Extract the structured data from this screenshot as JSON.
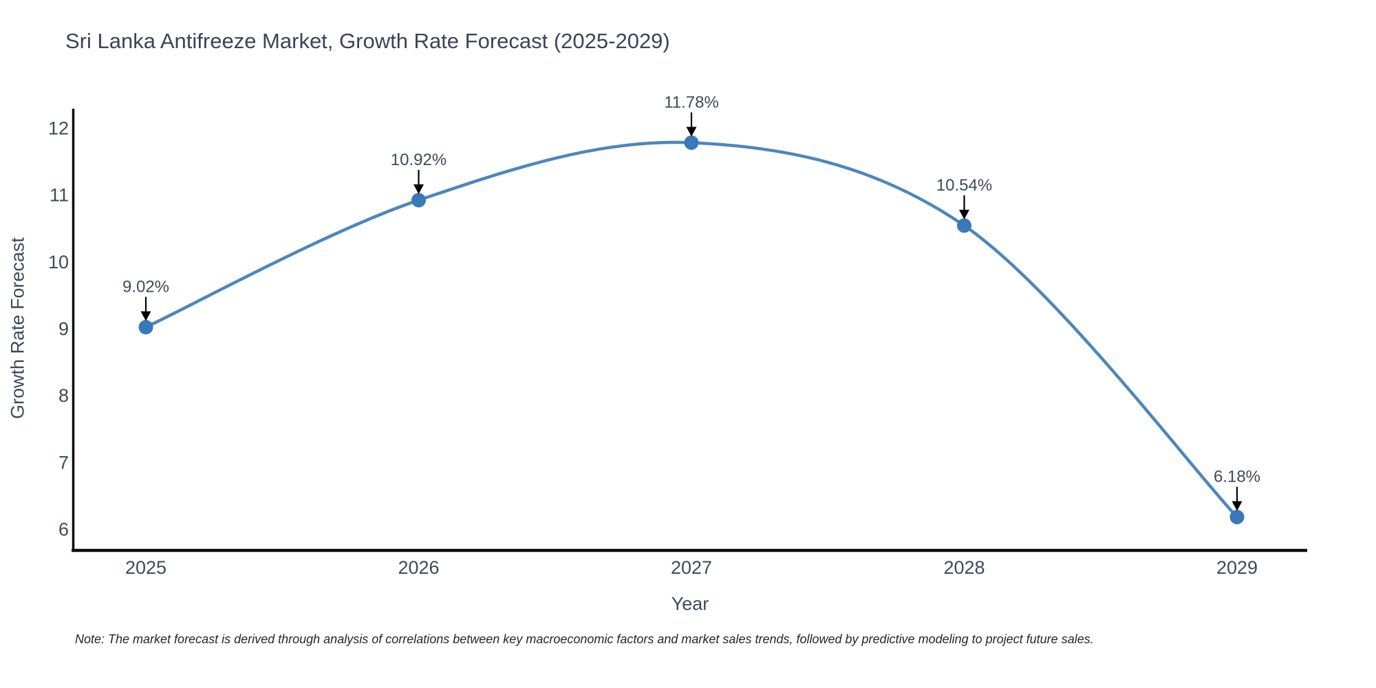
{
  "chart_data": {
    "type": "line",
    "title": "Sri Lanka Antifreeze Market, Growth Rate Forecast (2025-2029)",
    "xlabel": "Year",
    "ylabel": "Growth Rate Forecast",
    "x": [
      2025,
      2026,
      2027,
      2028,
      2029
    ],
    "series": [
      {
        "name": "Growth Rate Forecast",
        "values": [
          9.02,
          10.92,
          11.78,
          10.54,
          6.18
        ]
      }
    ],
    "point_labels": [
      "9.02%",
      "10.92%",
      "11.78%",
      "10.54%",
      "6.18%"
    ],
    "y_ticks": [
      6,
      7,
      8,
      9,
      10,
      11,
      12
    ],
    "x_ticks": [
      "2025",
      "2026",
      "2027",
      "2028",
      "2029"
    ],
    "ylim": [
      5.55,
      12.29
    ],
    "xlim": [
      2024.73,
      2029.26
    ],
    "grid": false,
    "legend_position": "none",
    "line_style": "smooth-spline",
    "marker_style": "filled-circle",
    "annotation_style": "down-arrow",
    "colors": {
      "line": "#4d86bb",
      "marker": "#3a79b8",
      "axis": "#0a0a0a",
      "tick_text": "#3d4a59",
      "title_text": "#3a4458",
      "annotation_text": "#3d4a59",
      "annotation_arrow": "#000000",
      "note_text": "#262626",
      "background": "#ffffff"
    },
    "note": "Note: The market forecast is derived through analysis of correlations between key macroeconomic factors and market sales trends, followed by predictive modeling to project future sales."
  }
}
